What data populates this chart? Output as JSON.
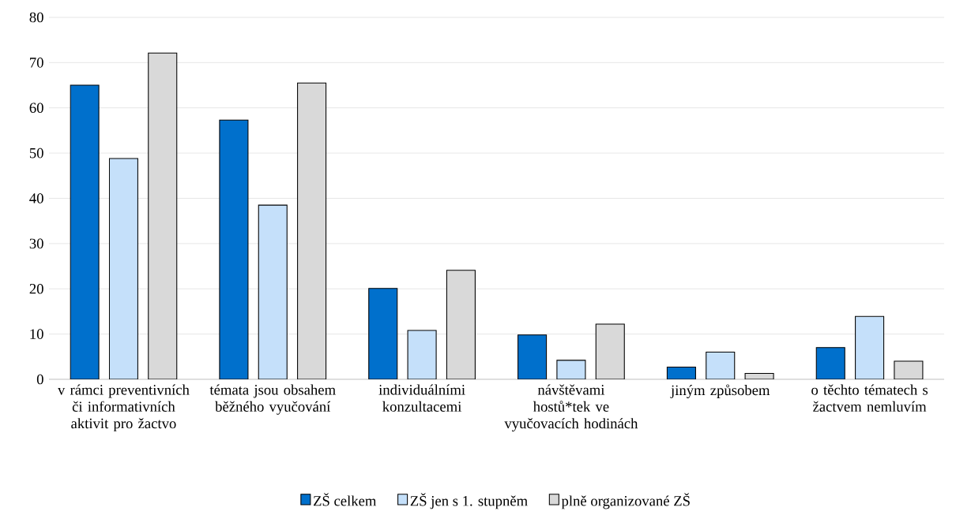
{
  "chart_data": {
    "type": "bar",
    "categories": [
      "v rámci preventivních či informativních aktivit pro žactvo",
      "témata jsou obsahem běžného vyučování",
      "individuálními konzultacemi",
      "návštěvami hostů*tek ve vyučovacích hodinách",
      "jiným způsobem",
      "o těchto tématech s žactvem nemluvím"
    ],
    "series": [
      {
        "name": "ZŠ celkem",
        "color": "#0070cc",
        "values": [
          65.0,
          57.3,
          20.1,
          9.8,
          2.7,
          7.0
        ]
      },
      {
        "name": "ZŠ jen s 1. stupněm",
        "color": "#c5e0fa",
        "values": [
          48.8,
          38.5,
          10.8,
          4.2,
          6.0,
          13.9
        ]
      },
      {
        "name": "plně organizované ZŠ",
        "color": "#d9d9d9",
        "values": [
          72.1,
          65.5,
          24.1,
          12.2,
          1.3,
          4.0
        ]
      }
    ],
    "ylim": [
      0,
      80
    ],
    "yticks": [
      0,
      10,
      20,
      30,
      40,
      50,
      60,
      70,
      80
    ],
    "grid": "y",
    "legend": "bottom"
  }
}
